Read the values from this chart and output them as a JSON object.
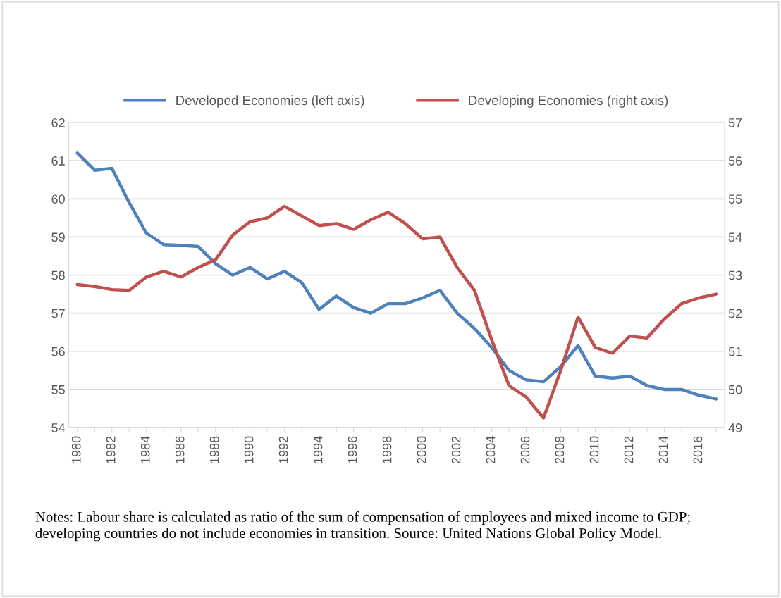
{
  "chart_data": {
    "type": "line",
    "categories": [
      "1980",
      null,
      "1982",
      null,
      "1984",
      null,
      "1986",
      null,
      "1988",
      null,
      "1990",
      null,
      "1992",
      null,
      "1994",
      null,
      "1996",
      null,
      "1998",
      null,
      "2000",
      null,
      "2002",
      null,
      "2004",
      null,
      "2006",
      null,
      "2008",
      null,
      "2010",
      null,
      "2012",
      null,
      "2014",
      null,
      "2016",
      null
    ],
    "series": [
      {
        "name": "Developed Economies (left axis)",
        "color": "#4f81bd",
        "values": [
          61.2,
          60.75,
          60.8,
          59.9,
          59.1,
          58.8,
          58.78,
          58.75,
          58.3,
          58.0,
          58.2,
          57.9,
          58.1,
          57.8,
          57.1,
          57.45,
          57.15,
          57.0,
          57.25,
          57.25,
          57.4,
          57.6,
          57.0,
          56.6,
          56.1,
          55.5,
          55.25,
          55.2,
          55.6,
          56.15,
          55.35,
          55.3,
          55.35,
          55.1,
          55.0,
          55.0,
          54.85,
          54.75
        ]
      },
      {
        "name": "Developing Economies (right axis)",
        "color": "#c0504d",
        "axis": "y2",
        "values": [
          52.75,
          52.7,
          52.62,
          52.6,
          52.95,
          53.1,
          52.95,
          53.2,
          53.4,
          54.05,
          54.4,
          54.5,
          54.8,
          54.55,
          54.3,
          54.35,
          54.2,
          54.45,
          54.65,
          54.35,
          53.95,
          54.0,
          53.2,
          52.6,
          51.3,
          50.1,
          49.8,
          49.25,
          50.5,
          51.9,
          51.1,
          50.95,
          51.4,
          51.35,
          51.85,
          52.25,
          52.4,
          52.5
        ]
      }
    ],
    "ylim": [
      54,
      62
    ],
    "yticks": [
      54,
      55,
      56,
      57,
      58,
      59,
      60,
      61,
      62
    ],
    "y2lim": [
      49,
      57
    ],
    "y2ticks": [
      49,
      50,
      51,
      52,
      53,
      54,
      55,
      56,
      57
    ],
    "grid": "y",
    "legend": "top",
    "marker": "none",
    "line_style": "solid",
    "annotations": [
      "Notes: Labour share is calculated as ratio of the sum of compensation of employees and mixed income to GDP; developing countries do not include economies in transition. Source: United Nations Global Policy Model."
    ]
  }
}
